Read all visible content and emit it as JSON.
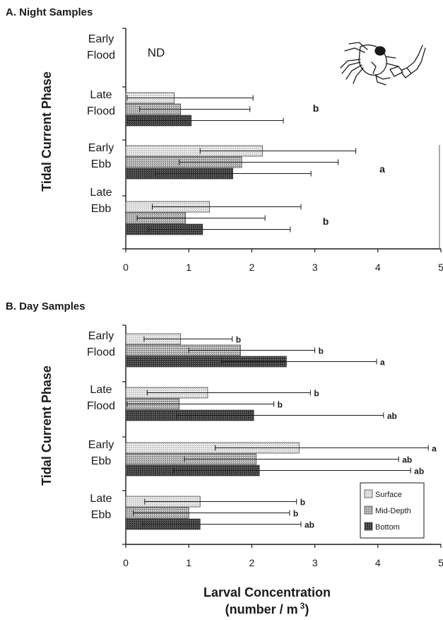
{
  "figure": {
    "xlabel_line1": "Larval Concentration",
    "xlabel_line2": "(number / m",
    "xlabel_sup": "3",
    "xlabel_close": ")"
  },
  "legend": {
    "items": [
      "Surface",
      "Mid-Depth",
      "Bottom"
    ]
  },
  "colors": {
    "surface": "#d8d8d8",
    "mid_depth": "#9a9a9a",
    "bottom": "#3a3a3a",
    "axis": "#1a1a1a"
  },
  "icons": [
    "shrimp-larva-icon"
  ],
  "chart_data": [
    {
      "type": "bar",
      "orientation": "horizontal",
      "title": "A. Night Samples",
      "ylabel": "Tidal Current Phase",
      "xlabel": "Larval Concentration (number / m 3)",
      "xlim": [
        0,
        5
      ],
      "xticks": [
        "0",
        "1",
        "2",
        "3",
        "4",
        "5"
      ],
      "categories": [
        {
          "line1": "Early",
          "line2": "Flood"
        },
        {
          "line1": "Late",
          "line2": "Flood"
        },
        {
          "line1": "Early",
          "line2": "Ebb"
        },
        {
          "line1": "Late",
          "line2": "Ebb"
        }
      ],
      "series": [
        {
          "name": "Surface",
          "values": [
            null,
            0.77,
            2.17,
            1.33
          ],
          "error_low": [
            null,
            0.02,
            1.18,
            0.42
          ],
          "error_high": [
            null,
            2.02,
            3.65,
            2.78
          ]
        },
        {
          "name": "Mid-Depth",
          "values": [
            null,
            0.87,
            1.84,
            0.95
          ],
          "error_low": [
            null,
            0.22,
            0.85,
            0.18
          ],
          "error_high": [
            null,
            1.97,
            3.37,
            2.21
          ]
        },
        {
          "name": "Bottom",
          "values": [
            null,
            1.04,
            1.7,
            1.22
          ],
          "error_low": [
            null,
            0.03,
            0.47,
            0.36
          ],
          "error_high": [
            null,
            2.5,
            2.94,
            2.61
          ]
        }
      ],
      "annotations": [
        {
          "category": 0,
          "text": "ND"
        },
        {
          "category": 1,
          "text": "b"
        },
        {
          "category": 2,
          "text": "a"
        },
        {
          "category": 3,
          "text": "b"
        }
      ]
    },
    {
      "type": "bar",
      "orientation": "horizontal",
      "title": "B. Day Samples",
      "ylabel": "Tidal Current Phase",
      "xlabel": "Larval Concentration (number / m 3)",
      "xlim": [
        0,
        5
      ],
      "xticks": [
        "0",
        "1",
        "2",
        "3",
        "4",
        "5"
      ],
      "categories": [
        {
          "line1": "Early",
          "line2": "Flood"
        },
        {
          "line1": "Late",
          "line2": "Flood"
        },
        {
          "line1": "Early",
          "line2": "Ebb"
        },
        {
          "line1": "Late",
          "line2": "Ebb"
        }
      ],
      "series": [
        {
          "name": "Surface",
          "values": [
            0.87,
            1.3,
            2.75,
            1.18
          ],
          "error_low": [
            0.29,
            0.34,
            1.42,
            0.3
          ],
          "error_high": [
            1.69,
            2.93,
            4.8,
            2.71
          ],
          "labels": [
            "b",
            "b",
            "a",
            "b"
          ]
        },
        {
          "name": "Mid-Depth",
          "values": [
            1.82,
            0.85,
            2.07,
            1.0
          ],
          "error_low": [
            1.0,
            0.02,
            0.93,
            0.12
          ],
          "error_high": [
            3.0,
            2.35,
            4.33,
            2.6
          ],
          "labels": [
            "b",
            "b",
            "ab",
            "b"
          ]
        },
        {
          "name": "Bottom",
          "values": [
            2.55,
            2.03,
            2.12,
            1.18
          ],
          "error_low": [
            1.52,
            0.81,
            0.76,
            0.27
          ],
          "error_high": [
            3.98,
            4.09,
            4.52,
            2.78
          ],
          "labels": [
            "a",
            "ab",
            "ab",
            "ab"
          ]
        }
      ]
    }
  ]
}
